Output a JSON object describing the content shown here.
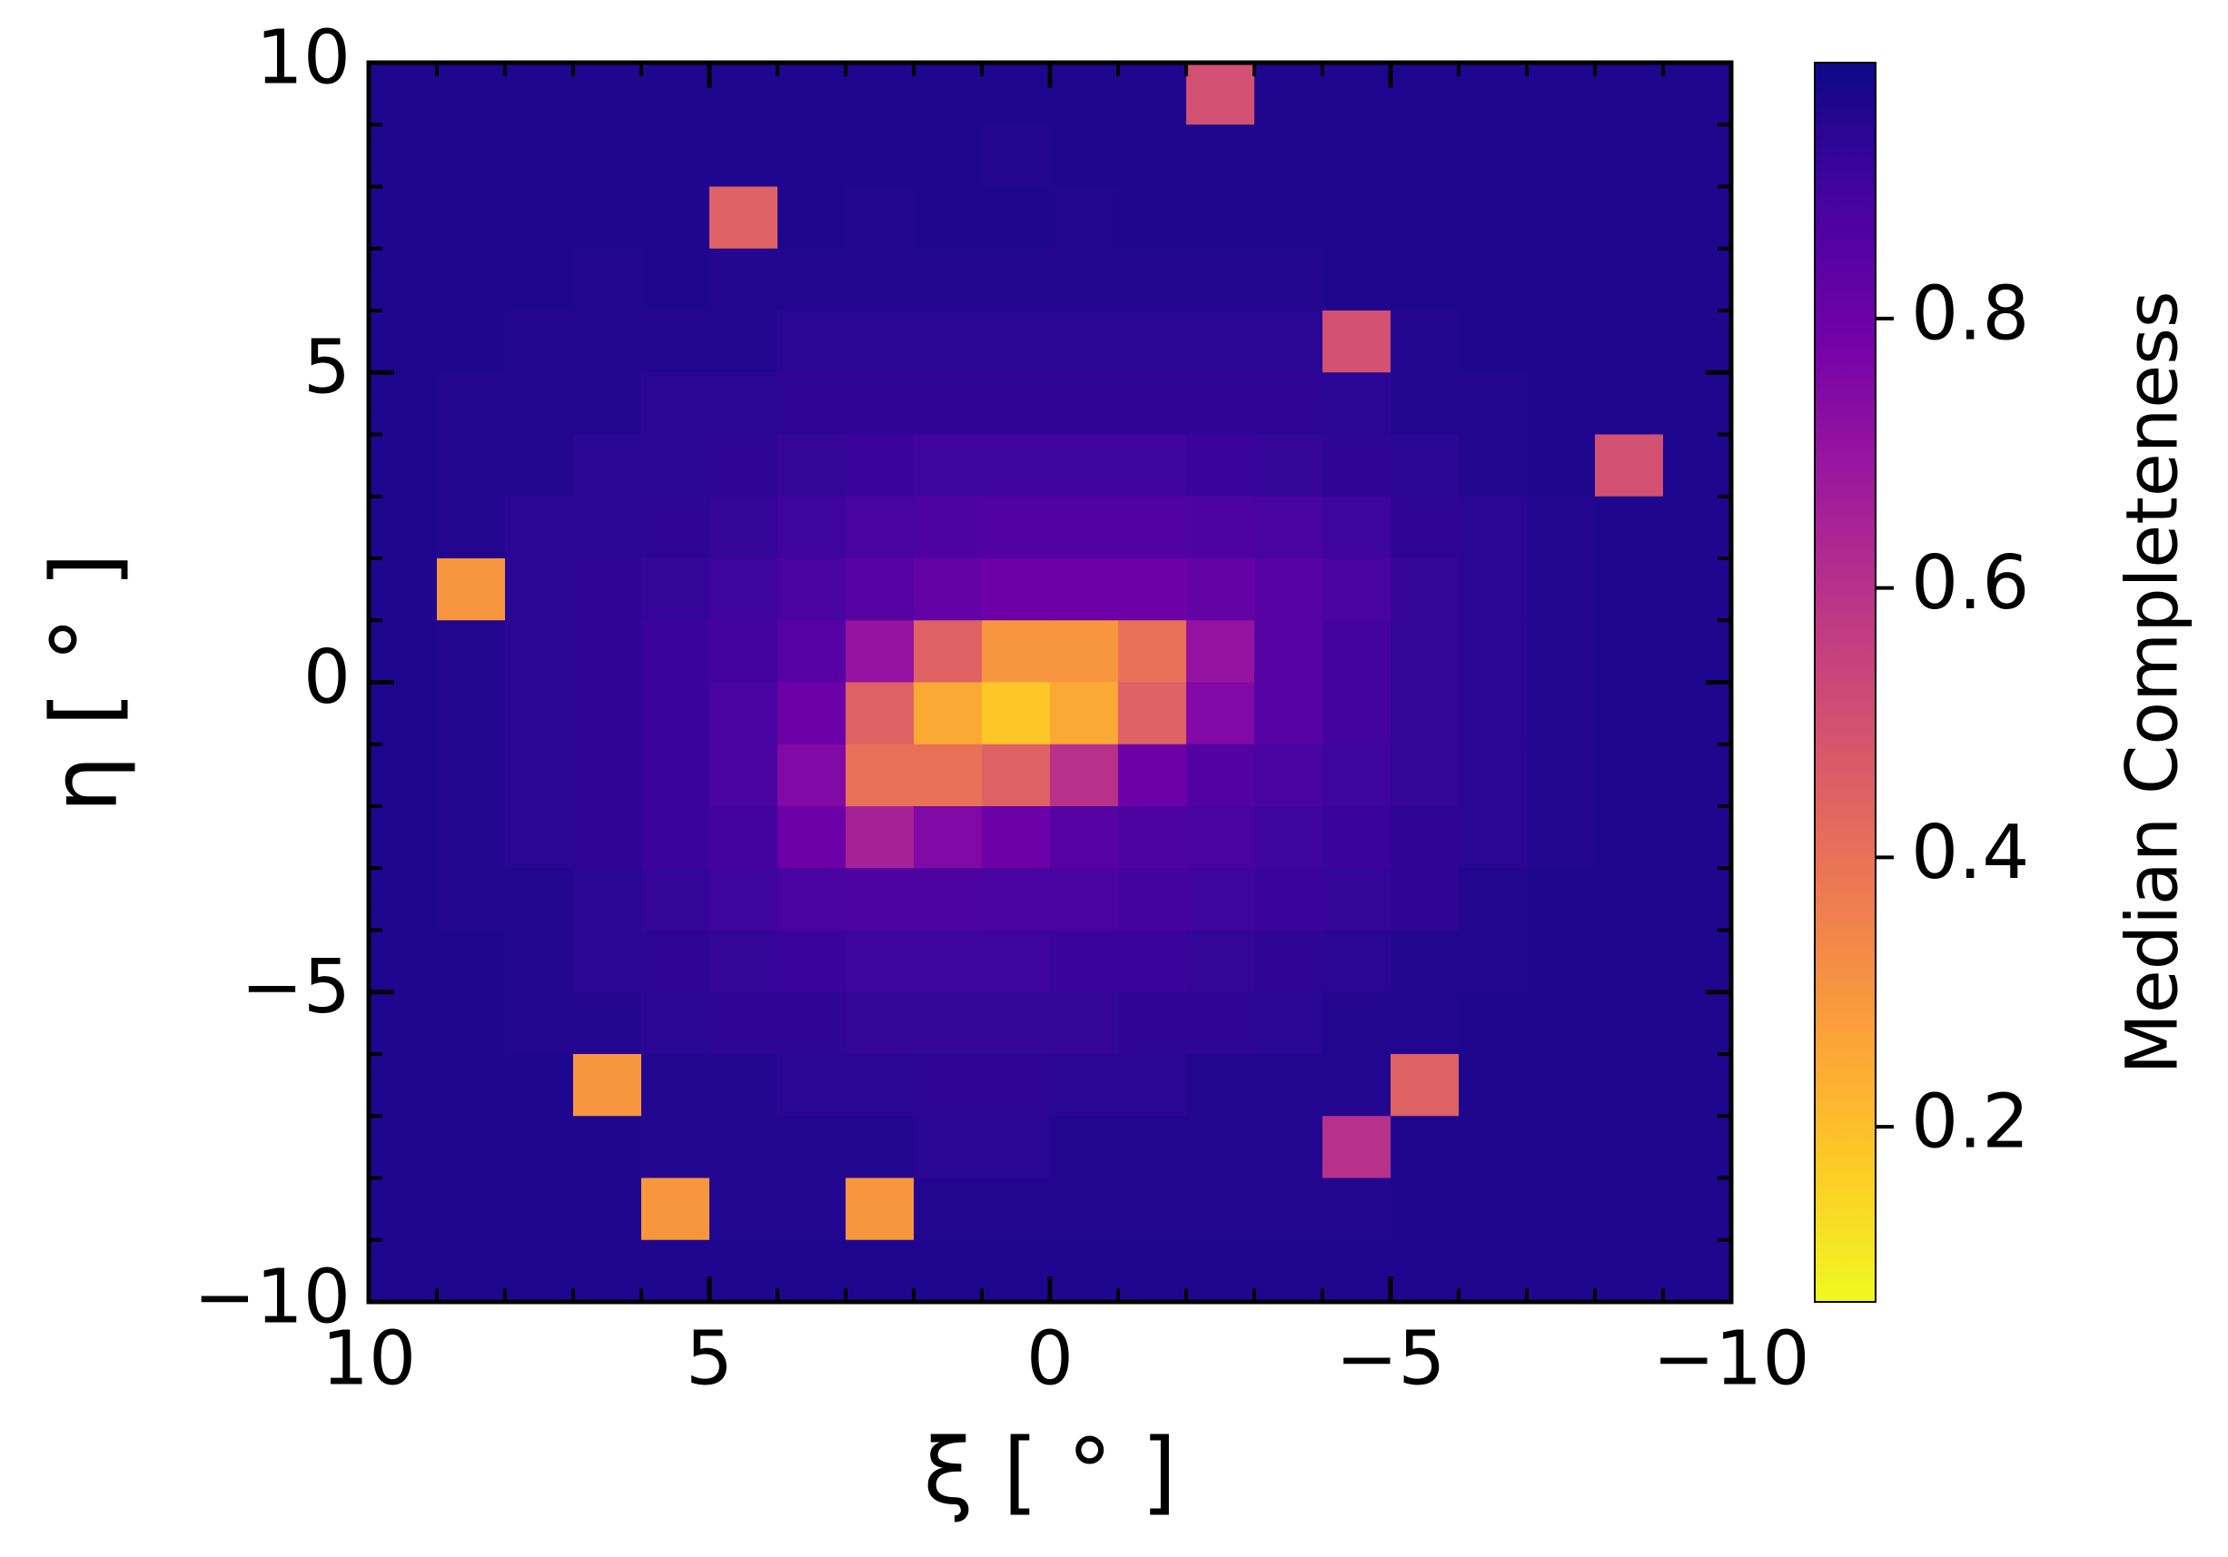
{
  "chart_data": {
    "type": "heatmap",
    "xlabel": "ξ [ ° ]",
    "ylabel": "η [ ° ]",
    "colorbar_label": "Median Completeness",
    "x": [
      9.5,
      8.5,
      7.5,
      6.5,
      5.5,
      4.5,
      3.5,
      2.5,
      1.5,
      0.5,
      -0.5,
      -1.5,
      -2.5,
      -3.5,
      -4.5,
      -5.5,
      -6.5,
      -7.5,
      -8.5,
      -9.5
    ],
    "y": [
      9.5,
      8.5,
      7.5,
      6.5,
      5.5,
      4.5,
      3.5,
      2.5,
      1.5,
      0.5,
      -0.5,
      -1.5,
      -2.5,
      -3.5,
      -4.5,
      -5.5,
      -6.5,
      -7.5,
      -8.5,
      -9.5
    ],
    "values": [
      [
        0.96,
        0.96,
        0.96,
        0.96,
        0.96,
        0.96,
        0.96,
        0.96,
        0.96,
        0.96,
        0.96,
        0.96,
        0.5,
        0.96,
        0.96,
        0.96,
        0.96,
        0.96,
        0.96,
        0.96
      ],
      [
        0.96,
        0.96,
        0.96,
        0.96,
        0.96,
        0.96,
        0.96,
        0.96,
        0.96,
        0.95,
        0.96,
        0.96,
        0.96,
        0.96,
        0.96,
        0.96,
        0.96,
        0.96,
        0.96,
        0.96
      ],
      [
        0.96,
        0.96,
        0.96,
        0.96,
        0.96,
        0.45,
        0.96,
        0.95,
        0.96,
        0.96,
        0.95,
        0.96,
        0.96,
        0.96,
        0.96,
        0.96,
        0.96,
        0.96,
        0.96,
        0.96
      ],
      [
        0.96,
        0.96,
        0.96,
        0.95,
        0.96,
        0.95,
        0.95,
        0.95,
        0.95,
        0.95,
        0.95,
        0.95,
        0.95,
        0.95,
        0.96,
        0.96,
        0.96,
        0.96,
        0.96,
        0.96
      ],
      [
        0.96,
        0.96,
        0.95,
        0.95,
        0.95,
        0.95,
        0.94,
        0.94,
        0.94,
        0.94,
        0.94,
        0.94,
        0.94,
        0.94,
        0.5,
        0.95,
        0.96,
        0.96,
        0.96,
        0.96
      ],
      [
        0.96,
        0.95,
        0.95,
        0.95,
        0.94,
        0.94,
        0.93,
        0.93,
        0.93,
        0.93,
        0.93,
        0.93,
        0.93,
        0.93,
        0.94,
        0.95,
        0.95,
        0.96,
        0.96,
        0.96
      ],
      [
        0.96,
        0.95,
        0.95,
        0.94,
        0.94,
        0.93,
        0.92,
        0.91,
        0.9,
        0.9,
        0.9,
        0.9,
        0.91,
        0.92,
        0.93,
        0.94,
        0.95,
        0.96,
        0.5,
        0.96
      ],
      [
        0.96,
        0.95,
        0.94,
        0.94,
        0.93,
        0.92,
        0.9,
        0.88,
        0.87,
        0.86,
        0.86,
        0.86,
        0.87,
        0.88,
        0.9,
        0.93,
        0.94,
        0.95,
        0.96,
        0.96
      ],
      [
        0.96,
        0.3,
        0.94,
        0.93,
        0.92,
        0.9,
        0.88,
        0.85,
        0.82,
        0.8,
        0.8,
        0.8,
        0.82,
        0.85,
        0.88,
        0.92,
        0.94,
        0.95,
        0.96,
        0.96
      ],
      [
        0.96,
        0.95,
        0.94,
        0.93,
        0.91,
        0.89,
        0.85,
        0.7,
        0.45,
        0.3,
        0.3,
        0.4,
        0.7,
        0.85,
        0.89,
        0.92,
        0.94,
        0.95,
        0.96,
        0.96
      ],
      [
        0.96,
        0.95,
        0.94,
        0.93,
        0.91,
        0.88,
        0.8,
        0.45,
        0.25,
        0.18,
        0.25,
        0.45,
        0.75,
        0.85,
        0.89,
        0.92,
        0.94,
        0.95,
        0.96,
        0.96
      ],
      [
        0.96,
        0.95,
        0.94,
        0.93,
        0.91,
        0.88,
        0.75,
        0.4,
        0.4,
        0.45,
        0.6,
        0.8,
        0.86,
        0.88,
        0.9,
        0.92,
        0.94,
        0.95,
        0.96,
        0.96
      ],
      [
        0.96,
        0.95,
        0.94,
        0.93,
        0.91,
        0.89,
        0.8,
        0.65,
        0.75,
        0.8,
        0.85,
        0.87,
        0.88,
        0.9,
        0.91,
        0.93,
        0.94,
        0.95,
        0.96,
        0.96
      ],
      [
        0.96,
        0.95,
        0.95,
        0.94,
        0.92,
        0.9,
        0.88,
        0.87,
        0.87,
        0.88,
        0.88,
        0.89,
        0.9,
        0.91,
        0.92,
        0.93,
        0.95,
        0.96,
        0.96,
        0.96
      ],
      [
        0.96,
        0.96,
        0.95,
        0.94,
        0.93,
        0.92,
        0.91,
        0.9,
        0.9,
        0.9,
        0.91,
        0.91,
        0.92,
        0.93,
        0.94,
        0.95,
        0.95,
        0.96,
        0.96,
        0.96
      ],
      [
        0.96,
        0.96,
        0.95,
        0.95,
        0.94,
        0.93,
        0.93,
        0.92,
        0.92,
        0.92,
        0.92,
        0.93,
        0.93,
        0.94,
        0.95,
        0.95,
        0.96,
        0.96,
        0.96,
        0.96
      ],
      [
        0.96,
        0.96,
        0.96,
        0.3,
        0.95,
        0.95,
        0.94,
        0.94,
        0.93,
        0.93,
        0.94,
        0.94,
        0.95,
        0.95,
        0.95,
        0.45,
        0.96,
        0.96,
        0.96,
        0.96
      ],
      [
        0.96,
        0.96,
        0.96,
        0.96,
        0.95,
        0.95,
        0.95,
        0.95,
        0.94,
        0.94,
        0.95,
        0.95,
        0.95,
        0.95,
        0.6,
        0.96,
        0.96,
        0.96,
        0.96,
        0.96
      ],
      [
        0.96,
        0.96,
        0.96,
        0.96,
        0.3,
        0.95,
        0.95,
        0.3,
        0.95,
        0.95,
        0.95,
        0.95,
        0.95,
        0.95,
        0.95,
        0.96,
        0.96,
        0.96,
        0.96,
        0.96
      ],
      [
        0.96,
        0.96,
        0.96,
        0.96,
        0.96,
        0.96,
        0.96,
        0.96,
        0.96,
        0.96,
        0.96,
        0.96,
        0.96,
        0.96,
        0.96,
        0.96,
        0.96,
        0.96,
        0.96,
        0.96
      ]
    ],
    "xlim": [
      10,
      -10
    ],
    "ylim": [
      -10,
      10
    ],
    "xticks": [
      10,
      5,
      0,
      {
        "value": -5,
        "label": "−5"
      },
      {
        "value": -10,
        "label": "−10"
      }
    ],
    "yticks": [
      {
        "value": -10,
        "label": "−10"
      },
      {
        "value": -5,
        "label": "−5"
      },
      0,
      5,
      10
    ],
    "xminorticks": [
      -9,
      -8,
      -7,
      -6,
      -4,
      -3,
      -2,
      -1,
      1,
      2,
      3,
      4,
      6,
      7,
      8,
      9
    ],
    "yminorticks": [
      -9,
      -8,
      -7,
      -6,
      -4,
      -3,
      -2,
      -1,
      1,
      2,
      3,
      4,
      6,
      7,
      8,
      9
    ],
    "clim": [
      0.07,
      0.99
    ],
    "cticks": [
      0.2,
      0.4,
      0.6,
      0.8
    ],
    "colorscale": [
      "#f0f921",
      "#fdca26",
      "#fb9f3a",
      "#ed7953",
      "#d8576b",
      "#bd3786",
      "#9c179e",
      "#7201a8",
      "#46039f",
      "#0d0887"
    ]
  }
}
